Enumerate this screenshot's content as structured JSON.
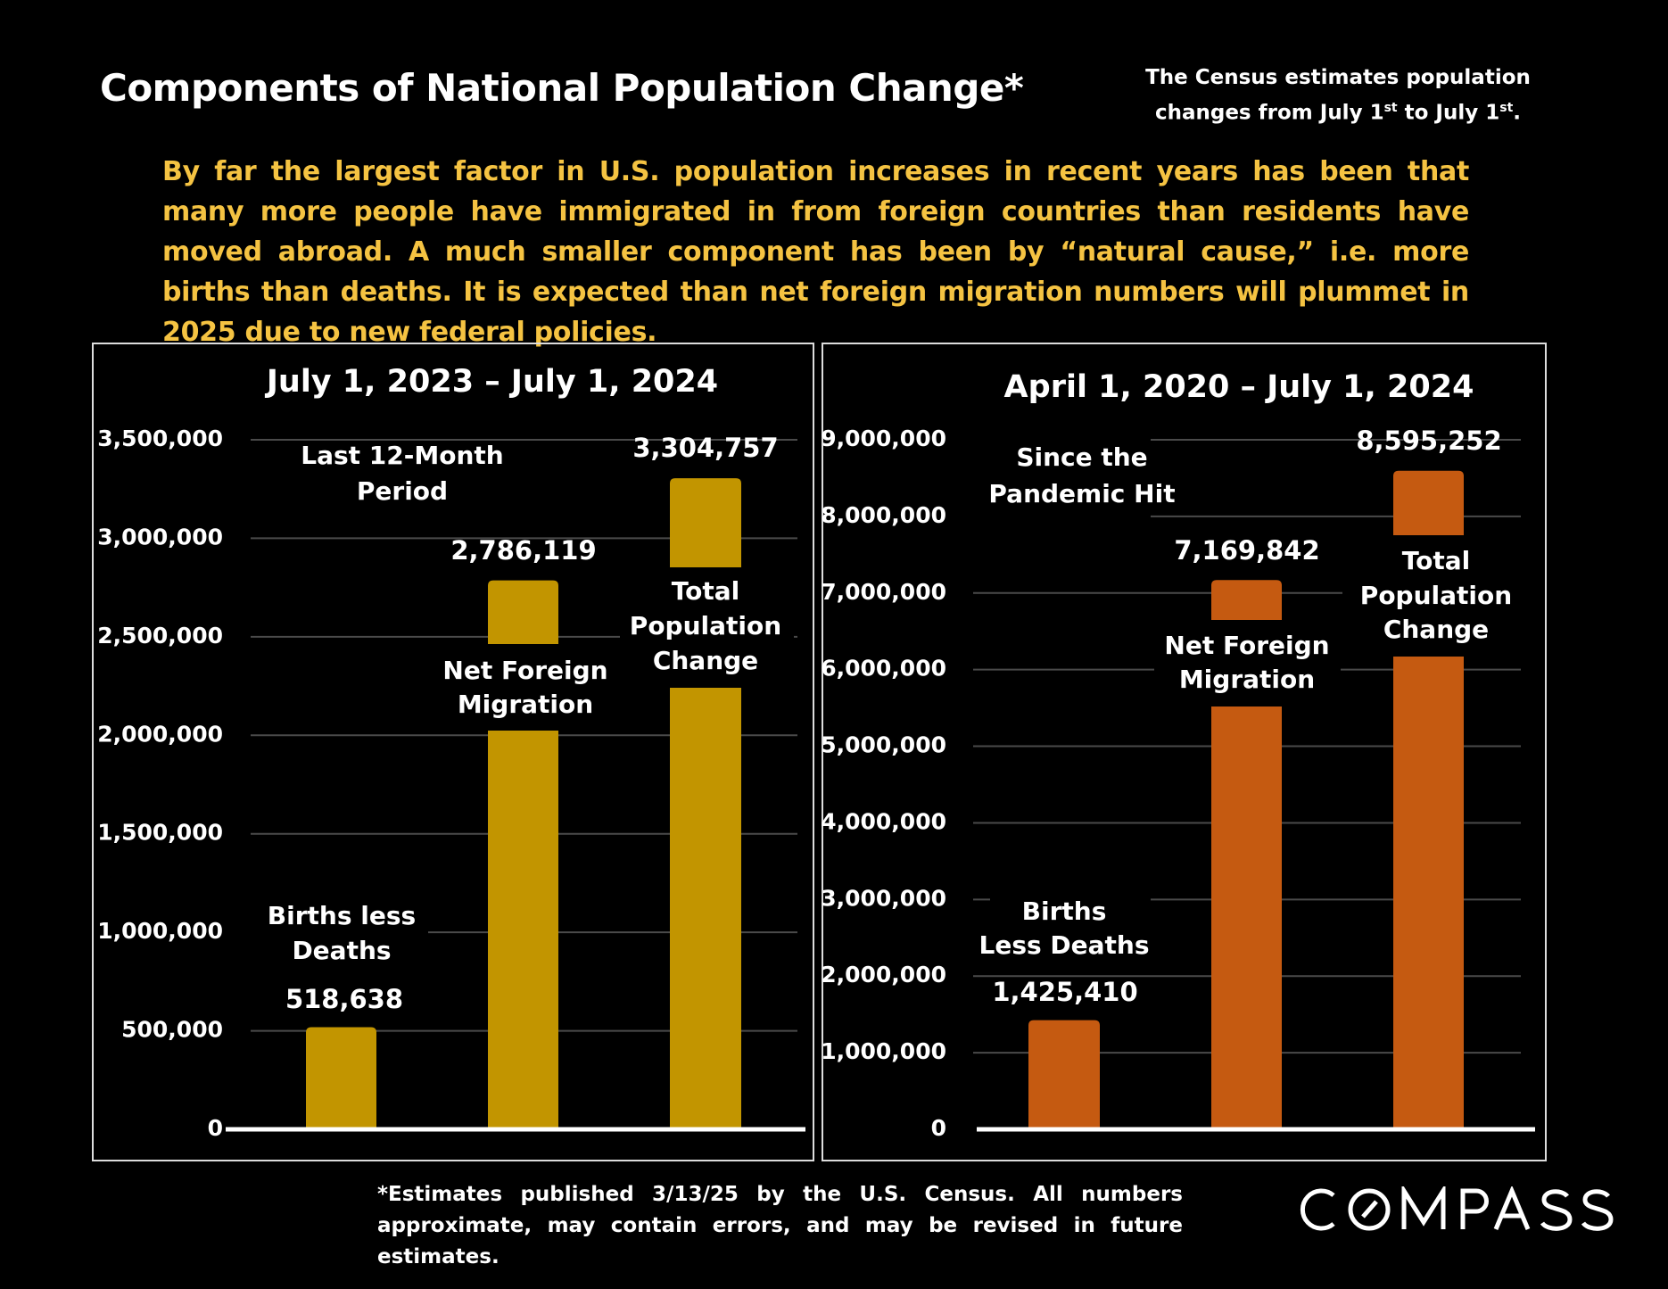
{
  "title": "Components of National Population Change*",
  "note": {
    "line1": "The Census estimates population",
    "line2_pre": "changes from July 1",
    "sup1": "st",
    "line2_mid": " to July 1",
    "sup2": "st",
    "line2_post": "."
  },
  "paragraph": "By far the largest factor in U.S. population increases in recent years has been that many more people have immigrated in from foreign countries than residents have moved abroad. A much smaller component has been by “natural cause,” i.e. more births than deaths. It is expected than net foreign migration numbers will plummet in 2025 due to new federal policies.",
  "footnote": "*Estimates published 3/13/25 by the U.S. Census. All numbers approximate, may contain errors, and may be revised in future estimates.",
  "logo": "COMPASS",
  "chart_data": [
    {
      "type": "bar",
      "title": "July 1, 2023 – July 1, 2024",
      "annotation": [
        "Last 12-Month",
        "Period"
      ],
      "categories": [
        [
          "Births less",
          "Deaths"
        ],
        [
          "Net Foreign",
          "Migration"
        ],
        [
          "Total",
          "Population",
          "Change"
        ]
      ],
      "values": [
        518638,
        2786119,
        3304757
      ],
      "data_labels": [
        "518,638",
        "2,786,119",
        "3,304,757"
      ],
      "ylim": [
        0,
        3500000
      ],
      "ticks": [
        "0",
        "500,000",
        "1,000,000",
        "1,500,000",
        "2,000,000",
        "2,500,000",
        "3,000,000",
        "3,500,000"
      ],
      "tick_values": [
        0,
        500000,
        1000000,
        1500000,
        2000000,
        2500000,
        3000000,
        3500000
      ],
      "color": "#c29500",
      "grid": true
    },
    {
      "type": "bar",
      "title": "April 1, 2020 – July 1, 2024",
      "annotation": [
        "Since the",
        "Pandemic Hit"
      ],
      "categories": [
        [
          "Births",
          "Less Deaths"
        ],
        [
          "Net Foreign",
          "Migration"
        ],
        [
          "Total",
          "Population",
          "Change"
        ]
      ],
      "values": [
        1425410,
        7169842,
        8595252
      ],
      "data_labels": [
        "1,425,410",
        "7,169,842",
        "8,595,252"
      ],
      "ylim": [
        0,
        9000000
      ],
      "ticks": [
        "0",
        "1,000,000",
        "2,000,000",
        "3,000,000",
        "4,000,000",
        "5,000,000",
        "6,000,000",
        "7,000,000",
        "8,000,000",
        "9,000,000"
      ],
      "tick_values": [
        0,
        1000000,
        2000000,
        3000000,
        4000000,
        5000000,
        6000000,
        7000000,
        8000000,
        9000000
      ],
      "color": "#c55a11",
      "grid": true
    }
  ]
}
